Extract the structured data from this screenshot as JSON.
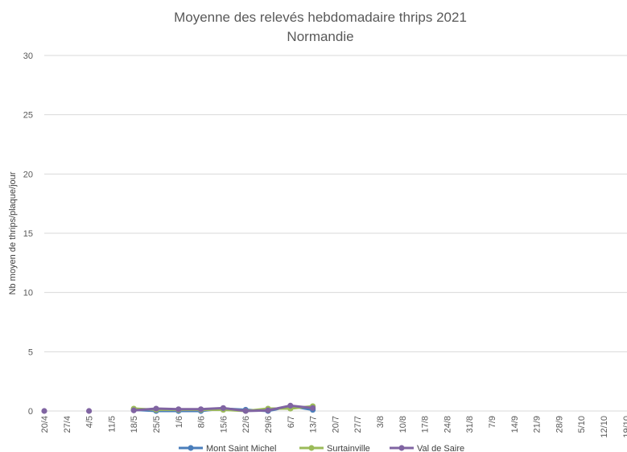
{
  "chart_data": {
    "type": "line",
    "title": "Moyenne des relevés hebdomadaire thrips 2021",
    "subtitle": "Normandie",
    "xlabel": "",
    "ylabel": "Nb moyen de thrips/plaque/jour",
    "ylim": [
      0,
      30
    ],
    "yticks": [
      "0",
      "5",
      "10",
      "15",
      "20",
      "25",
      "30"
    ],
    "grid": true,
    "legend_position": "bottom",
    "categories": [
      "20/4",
      "27/4",
      "4/5",
      "11/5",
      "18/5",
      "25/5",
      "1/6",
      "8/6",
      "15/6",
      "22/6",
      "29/6",
      "6/7",
      "13/7",
      "20/7",
      "27/7",
      "3/8",
      "10/8",
      "17/8",
      "24/8",
      "31/8",
      "7/9",
      "14/9",
      "21/9",
      "28/9",
      "5/10",
      "12/10",
      "19/10"
    ],
    "series": [
      {
        "name": "Mont Saint Michel",
        "color": "#4a7ebb",
        "values": [
          null,
          null,
          null,
          null,
          0.1,
          0.0,
          0.0,
          0.0,
          0.2,
          0.1,
          0.0,
          0.4,
          0.1,
          null,
          null,
          null,
          null,
          null,
          null,
          null,
          null,
          null,
          null,
          null,
          null,
          null,
          null
        ]
      },
      {
        "name": "Surtainville",
        "color": "#9bbb59",
        "values": [
          null,
          null,
          null,
          null,
          0.2,
          0.1,
          0.1,
          0.1,
          0.1,
          0.0,
          0.2,
          0.2,
          0.4,
          null,
          null,
          null,
          null,
          null,
          null,
          null,
          null,
          null,
          null,
          null,
          null,
          null,
          null
        ]
      },
      {
        "name": "Val de Saire",
        "color": "#8064a2",
        "values": [
          0.0,
          null,
          0.0,
          null,
          0.05,
          0.2,
          0.15,
          0.15,
          0.25,
          0.0,
          0.05,
          0.45,
          0.25,
          null,
          null,
          null,
          null,
          null,
          null,
          null,
          null,
          null,
          null,
          null,
          null,
          null,
          null
        ]
      }
    ]
  }
}
